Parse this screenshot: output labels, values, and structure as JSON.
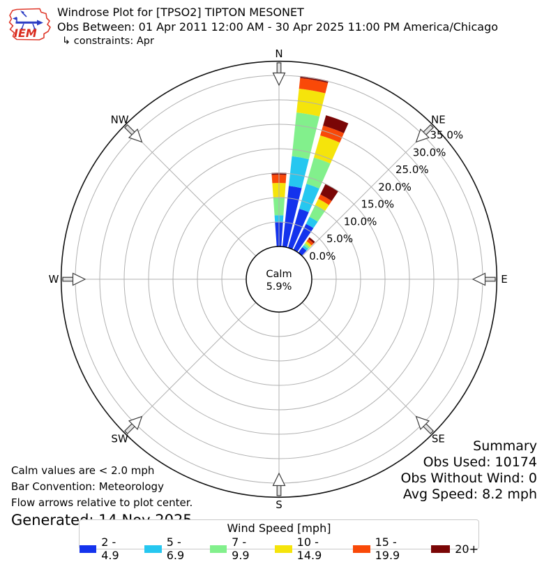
{
  "header": {
    "logo_text": "IEM",
    "title": "Windrose Plot for [TPSO2] TIPTON MESONET",
    "subtitle": "Obs Between: 01 Apr 2011 12:00 AM - 30 Apr 2025 11:00 PM America/Chicago",
    "constraints": "↳ constraints: Apr"
  },
  "chart_data": {
    "type": "windrose",
    "units": "percent frequency of observations",
    "legend_title": "Wind Speed [mph]",
    "calm": {
      "label": "Calm",
      "value": "5.9%"
    },
    "compass_points": [
      "N",
      "NE",
      "E",
      "SE",
      "S",
      "SW",
      "W",
      "NW"
    ],
    "radial_ticks": [
      {
        "value": 0,
        "label": "0.0%"
      },
      {
        "value": 5,
        "label": "5.0%"
      },
      {
        "value": 10,
        "label": "10.0%"
      },
      {
        "value": 15,
        "label": "15.0%"
      },
      {
        "value": 20,
        "label": "20.0%"
      },
      {
        "value": 25,
        "label": "25.0%"
      },
      {
        "value": 30,
        "label": "30.0%"
      },
      {
        "value": 35,
        "label": "35.0%"
      }
    ],
    "grid": {
      "rings_pct": [
        5,
        10,
        15,
        20,
        25,
        30,
        35
      ],
      "spokes_every_deg": 45,
      "outer_ring_pct": 37.9
    },
    "bar_width_deg": 8,
    "speed_bins": [
      {
        "label": "2 - 4.9",
        "color": "#1433ed"
      },
      {
        "label": "5 - 6.9",
        "color": "#26c7f0"
      },
      {
        "label": "7 - 9.9",
        "color": "#82f08c"
      },
      {
        "label": "10 - 14.9",
        "color": "#f5e40b"
      },
      {
        "label": "15 - 19.9",
        "color": "#f94908"
      },
      {
        "label": "20+",
        "color": "#7a0606"
      }
    ],
    "series": [
      {
        "direction_deg": 0,
        "values": [
          5.0,
          1.4,
          3.7,
          2.9,
          1.7,
          0.4
        ]
      },
      {
        "direction_deg": 10,
        "values": [
          12.5,
          6.1,
          9.0,
          4.9,
          2.2,
          0.4
        ]
      },
      {
        "direction_deg": 20,
        "values": [
          8.3,
          5.3,
          5.6,
          4.7,
          2.1,
          2.2
        ]
      },
      {
        "direction_deg": 30,
        "values": [
          5.9,
          1.6,
          2.7,
          1.4,
          1.0,
          2.4
        ]
      },
      {
        "direction_deg": 40,
        "values": [
          1.4,
          0.5,
          0.5,
          0.5,
          0.6,
          0.4
        ]
      }
    ]
  },
  "summary": {
    "title": "Summary",
    "obs_used": "Obs Used: 10174",
    "obs_without_wind": "Obs Without Wind: 0",
    "avg_speed": "Avg Speed: 8.2 mph"
  },
  "footnotes": {
    "calm": "Calm values are < 2.0 mph",
    "convention": "Bar Convention: Meteorology",
    "arrows": "Flow arrows relative to plot center.",
    "generated": "Generated: 14 Nov 2025"
  }
}
